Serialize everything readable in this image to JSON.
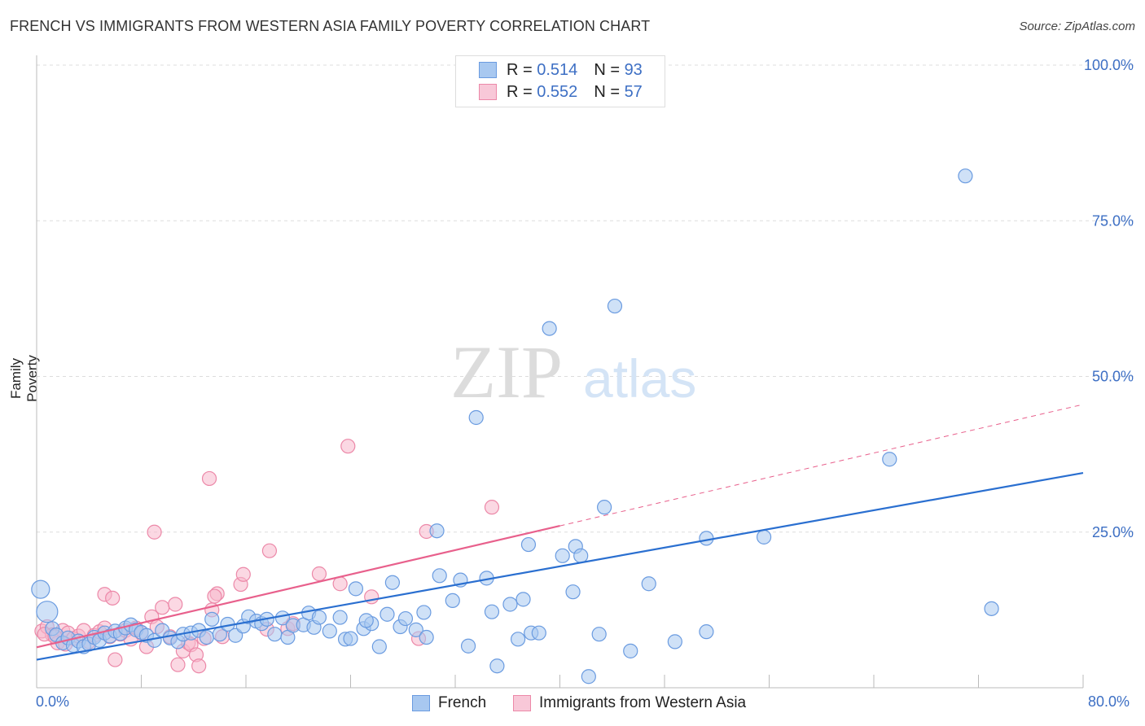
{
  "title": "FRENCH VS IMMIGRANTS FROM WESTERN ASIA FAMILY POVERTY CORRELATION CHART",
  "source": "Source: ZipAtlas.com",
  "watermark": {
    "zip": "ZIP",
    "atlas": "atlas"
  },
  "legend_top": [
    {
      "r_label": "R = ",
      "r_value": "0.514",
      "n_label": "N = ",
      "n_value": "93"
    },
    {
      "r_label": "R = ",
      "r_value": "0.552",
      "n_label": "N = ",
      "n_value": "57"
    }
  ],
  "colors": {
    "french_fill": "#a8c8f0",
    "french_stroke": "#6a9be0",
    "french_line": "#2a6fd0",
    "immig_fill": "#f8b8cc",
    "immig_stroke": "#ec88a8",
    "immig_line": "#e8608c",
    "grid": "#dddddd",
    "axis_label": "#3d6fc4"
  },
  "chart_data": {
    "type": "scatter",
    "xlabel": "",
    "ylabel": "Family Poverty",
    "xlim": [
      0,
      80
    ],
    "ylim": [
      0,
      100
    ],
    "x_tick_labels": [
      "0.0%",
      "80.0%"
    ],
    "y_tick_labels": [
      "25.0%",
      "50.0%",
      "75.0%",
      "100.0%"
    ],
    "y_ticks": [
      25,
      50,
      75,
      100
    ],
    "legend_placement": "top-center",
    "bottom_legend": [
      "French",
      "Immigrants from Western Asia"
    ],
    "series": [
      {
        "name": "French",
        "r": 0.514,
        "n": 93,
        "trend": {
          "x": [
            0,
            80
          ],
          "y": [
            4.5,
            34.5
          ],
          "style": "solid"
        },
        "points": [
          [
            0.3,
            15.8
          ],
          [
            0.8,
            12.2
          ],
          [
            1.2,
            9.5
          ],
          [
            1.5,
            8.5
          ],
          [
            2.0,
            7.2
          ],
          [
            2.4,
            8.0
          ],
          [
            2.8,
            6.8
          ],
          [
            3.2,
            7.5
          ],
          [
            3.6,
            6.6
          ],
          [
            4.0,
            7.0
          ],
          [
            4.4,
            8.1
          ],
          [
            4.8,
            7.6
          ],
          [
            5.2,
            8.8
          ],
          [
            5.6,
            8.3
          ],
          [
            6.0,
            9.1
          ],
          [
            6.4,
            8.7
          ],
          [
            6.8,
            9.6
          ],
          [
            7.2,
            10.1
          ],
          [
            7.6,
            9.3
          ],
          [
            8.0,
            8.9
          ],
          [
            8.4,
            8.4
          ],
          [
            9.0,
            7.6
          ],
          [
            9.6,
            9.2
          ],
          [
            10.2,
            8.0
          ],
          [
            10.8,
            7.4
          ],
          [
            11.2,
            8.6
          ],
          [
            11.8,
            8.8
          ],
          [
            12.4,
            9.2
          ],
          [
            13.0,
            8.1
          ],
          [
            13.4,
            11.0
          ],
          [
            14.0,
            8.6
          ],
          [
            14.6,
            10.2
          ],
          [
            15.2,
            8.4
          ],
          [
            15.8,
            9.9
          ],
          [
            16.2,
            11.4
          ],
          [
            16.8,
            10.7
          ],
          [
            17.2,
            10.3
          ],
          [
            17.6,
            11.0
          ],
          [
            18.2,
            8.6
          ],
          [
            18.8,
            11.2
          ],
          [
            19.2,
            8.1
          ],
          [
            19.6,
            10.0
          ],
          [
            20.4,
            10.1
          ],
          [
            20.8,
            12.0
          ],
          [
            21.2,
            9.7
          ],
          [
            21.6,
            11.3
          ],
          [
            22.4,
            9.1
          ],
          [
            23.2,
            11.3
          ],
          [
            23.6,
            7.8
          ],
          [
            24.0,
            7.9
          ],
          [
            24.4,
            15.9
          ],
          [
            25.0,
            9.5
          ],
          [
            25.6,
            10.3
          ],
          [
            25.2,
            10.8
          ],
          [
            26.2,
            6.6
          ],
          [
            26.8,
            11.8
          ],
          [
            27.2,
            16.9
          ],
          [
            27.8,
            9.8
          ],
          [
            28.2,
            11.1
          ],
          [
            29.0,
            9.3
          ],
          [
            29.6,
            12.1
          ],
          [
            29.8,
            8.1
          ],
          [
            30.6,
            25.2
          ],
          [
            30.8,
            18.0
          ],
          [
            31.8,
            14.0
          ],
          [
            32.4,
            17.3
          ],
          [
            33.0,
            6.7
          ],
          [
            33.6,
            43.4
          ],
          [
            34.4,
            17.6
          ],
          [
            34.8,
            12.2
          ],
          [
            35.2,
            3.5
          ],
          [
            36.2,
            13.4
          ],
          [
            36.8,
            7.8
          ],
          [
            37.2,
            14.2
          ],
          [
            37.6,
            23.0
          ],
          [
            37.8,
            8.8
          ],
          [
            38.4,
            8.8
          ],
          [
            39.2,
            57.7
          ],
          [
            40.2,
            21.2
          ],
          [
            41.0,
            15.4
          ],
          [
            41.2,
            22.7
          ],
          [
            41.6,
            21.2
          ],
          [
            42.2,
            1.8
          ],
          [
            43.0,
            8.6
          ],
          [
            43.4,
            29.0
          ],
          [
            44.2,
            61.3
          ],
          [
            45.4,
            5.9
          ],
          [
            46.8,
            16.7
          ],
          [
            48.8,
            7.4
          ],
          [
            51.2,
            9.0
          ],
          [
            51.2,
            24.0
          ],
          [
            55.6,
            24.2
          ],
          [
            65.2,
            36.7
          ],
          [
            71.0,
            82.2
          ],
          [
            73.0,
            12.7
          ]
        ]
      },
      {
        "name": "Immigrants from Western Asia",
        "r": 0.552,
        "n": 57,
        "trend": {
          "x": [
            0,
            40
          ],
          "y": [
            6.5,
            26.0
          ],
          "style": "solid",
          "dashed_extension": {
            "x": [
              40,
              80
            ],
            "y": [
              26.0,
              45.5
            ]
          }
        },
        "points": [
          [
            0.4,
            9.1
          ],
          [
            0.8,
            9.8
          ],
          [
            1.2,
            8.5
          ],
          [
            1.6,
            7.2
          ],
          [
            2.0,
            9.2
          ],
          [
            2.4,
            8.8
          ],
          [
            2.8,
            7.9
          ],
          [
            3.2,
            8.3
          ],
          [
            3.6,
            9.2
          ],
          [
            4.0,
            7.4
          ],
          [
            4.4,
            8.4
          ],
          [
            4.8,
            9.0
          ],
          [
            5.2,
            9.6
          ],
          [
            5.6,
            8.2
          ],
          [
            5.2,
            15.0
          ],
          [
            5.8,
            14.4
          ],
          [
            6.0,
            4.5
          ],
          [
            6.4,
            8.6
          ],
          [
            6.8,
            9.2
          ],
          [
            7.2,
            7.8
          ],
          [
            7.6,
            9.6
          ],
          [
            8.0,
            8.8
          ],
          [
            8.4,
            6.6
          ],
          [
            8.8,
            11.4
          ],
          [
            9.0,
            25.0
          ],
          [
            9.2,
            9.8
          ],
          [
            9.6,
            12.9
          ],
          [
            10.2,
            8.2
          ],
          [
            10.6,
            13.4
          ],
          [
            10.8,
            3.7
          ],
          [
            11.2,
            5.9
          ],
          [
            11.6,
            7.2
          ],
          [
            11.8,
            6.9
          ],
          [
            12.2,
            5.3
          ],
          [
            12.4,
            3.5
          ],
          [
            12.8,
            7.9
          ],
          [
            13.2,
            33.6
          ],
          [
            13.4,
            12.5
          ],
          [
            13.8,
            15.1
          ],
          [
            13.6,
            14.7
          ],
          [
            14.2,
            8.2
          ],
          [
            15.6,
            16.6
          ],
          [
            15.8,
            18.2
          ],
          [
            17.6,
            9.4
          ],
          [
            17.8,
            22.0
          ],
          [
            19.2,
            9.5
          ],
          [
            19.6,
            10.3
          ],
          [
            21.6,
            18.3
          ],
          [
            23.2,
            16.7
          ],
          [
            23.8,
            38.8
          ],
          [
            25.6,
            14.6
          ],
          [
            29.2,
            7.9
          ],
          [
            29.8,
            25.1
          ],
          [
            34.8,
            29.0
          ],
          [
            0.6,
            8.6
          ],
          [
            1.4,
            8.2
          ],
          [
            2.2,
            7.0
          ]
        ]
      }
    ]
  }
}
